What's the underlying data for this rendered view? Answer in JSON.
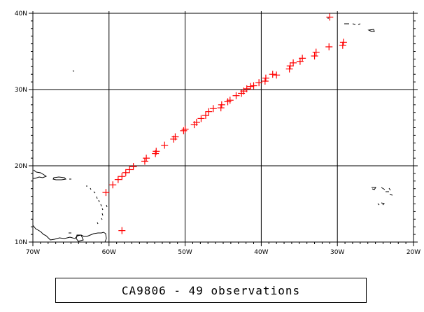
{
  "map": {
    "lon_range": [
      -70,
      -20
    ],
    "lat_range": [
      10,
      40
    ],
    "lon_ticks": [
      {
        "value": -70,
        "label": "70W"
      },
      {
        "value": -60,
        "label": "60W"
      },
      {
        "value": -50,
        "label": "50W"
      },
      {
        "value": -40,
        "label": "40W"
      },
      {
        "value": -30,
        "label": "30W"
      },
      {
        "value": -20,
        "label": "20W"
      }
    ],
    "lat_ticks": [
      {
        "value": 10,
        "label": "10N"
      },
      {
        "value": 20,
        "label": "20N"
      },
      {
        "value": 30,
        "label": "30N"
      },
      {
        "value": 40,
        "label": "40N"
      }
    ],
    "grid": true,
    "marker": "plus",
    "marker_color": "#ff0000",
    "observations": [
      [
        -60.4,
        16.5
      ],
      [
        -59.5,
        17.5
      ],
      [
        -58.8,
        18.2
      ],
      [
        -58.3,
        18.6
      ],
      [
        -57.8,
        19.1
      ],
      [
        -57.3,
        19.5
      ],
      [
        -56.8,
        19.9
      ],
      [
        -55.3,
        20.6
      ],
      [
        -55.1,
        21.0
      ],
      [
        -53.9,
        21.6
      ],
      [
        -53.8,
        21.9
      ],
      [
        -52.7,
        22.7
      ],
      [
        -51.5,
        23.5
      ],
      [
        -51.3,
        23.8
      ],
      [
        -50.2,
        24.6
      ],
      [
        -50.0,
        24.8
      ],
      [
        -48.8,
        25.4
      ],
      [
        -48.5,
        25.7
      ],
      [
        -47.9,
        26.2
      ],
      [
        -47.3,
        26.6
      ],
      [
        -46.9,
        27.1
      ],
      [
        -46.3,
        27.5
      ],
      [
        -45.3,
        27.6
      ],
      [
        -45.2,
        28.0
      ],
      [
        -44.4,
        28.4
      ],
      [
        -44.1,
        28.6
      ],
      [
        -43.3,
        29.2
      ],
      [
        -42.6,
        29.5
      ],
      [
        -42.3,
        29.8
      ],
      [
        -41.9,
        30.1
      ],
      [
        -41.4,
        30.4
      ],
      [
        -41.0,
        30.5
      ],
      [
        -40.3,
        30.9
      ],
      [
        -39.5,
        31.1
      ],
      [
        -39.4,
        31.5
      ],
      [
        -38.5,
        32.0
      ],
      [
        -38.0,
        31.9
      ],
      [
        -36.3,
        32.7
      ],
      [
        -36.2,
        33.1
      ],
      [
        -35.8,
        33.5
      ],
      [
        -34.9,
        33.7
      ],
      [
        -34.6,
        34.1
      ],
      [
        -33.0,
        34.4
      ],
      [
        -32.8,
        34.9
      ],
      [
        -31.1,
        35.6
      ],
      [
        -29.3,
        35.8
      ],
      [
        -29.2,
        36.2
      ],
      [
        -31.0,
        39.5
      ],
      [
        -58.3,
        11.5
      ]
    ]
  },
  "caption": "CA9806 - 49 observations"
}
